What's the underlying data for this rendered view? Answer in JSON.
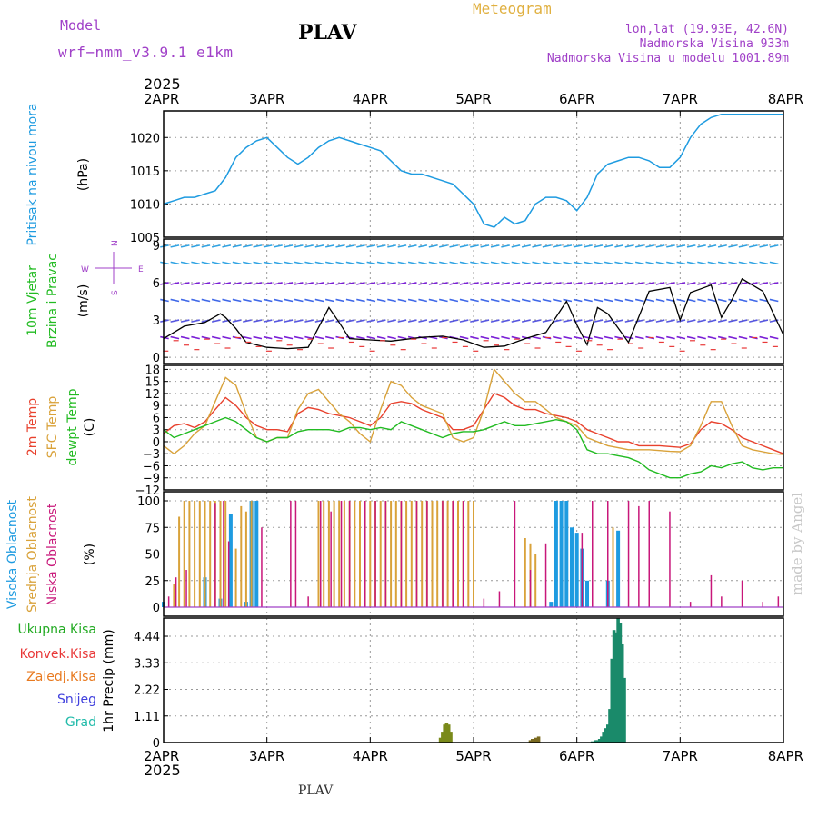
{
  "header": {
    "model_label": "Model",
    "model_name": "wrf−nmm_v3.9.1  e1km",
    "station": "PLAV",
    "product": "Meteogram",
    "coords": "lon,lat (19.93E, 42.6N)",
    "altitude": "Nadmorska Visina 933m",
    "model_altitude": "Nadmorska Visina u modelu 1001.89m",
    "year_top": "2025",
    "year_bottom": "2025",
    "footer_station": "PLAV",
    "credit": "made by Angel"
  },
  "colors": {
    "pressure": "#1e9be0",
    "temp2m": "#e8412d",
    "sfc": "#d9a23a",
    "dewpt": "#22bb22",
    "high_cloud": "#1e9be0",
    "mid_cloud": "#d9a23a",
    "low_cloud": "#c8177a",
    "total_precip": "#1a8a3a",
    "frame": "#000000",
    "grid": "#888888",
    "header_purple": "#a040c8",
    "header_gold": "#e0b040"
  },
  "chart_data": [
    {
      "type": "line",
      "panel": "pressure",
      "ylabel_left": "Pritisak na nivou mora",
      "ylabel_unit": "(hPa)",
      "x_ticks": [
        "2APR",
        "3APR",
        "4APR",
        "5APR",
        "6APR",
        "7APR",
        "8APR"
      ],
      "y_ticks": [
        1005,
        1010,
        1015,
        1020
      ],
      "ylim": [
        1005,
        1024
      ],
      "series": [
        {
          "name": "Pritisak na nivou mora",
          "x": [
            0,
            0.1,
            0.2,
            0.3,
            0.4,
            0.5,
            0.6,
            0.7,
            0.8,
            0.9,
            1.0,
            1.1,
            1.2,
            1.3,
            1.4,
            1.5,
            1.6,
            1.7,
            1.8,
            1.9,
            2.0,
            2.1,
            2.2,
            2.3,
            2.4,
            2.5,
            2.6,
            2.7,
            2.8,
            2.9,
            3.0,
            3.1,
            3.2,
            3.3,
            3.4,
            3.5,
            3.6,
            3.7,
            3.8,
            3.9,
            4.0,
            4.1,
            4.2,
            4.3,
            4.4,
            4.5,
            4.6,
            4.7,
            4.8,
            4.9,
            5.0,
            5.1,
            5.2,
            5.3,
            5.4,
            5.5,
            5.6,
            5.7,
            5.8,
            5.9,
            6.0
          ],
          "y": [
            1010,
            1010.5,
            1011,
            1011,
            1011.5,
            1012,
            1014,
            1017,
            1018.5,
            1019.5,
            1020,
            1018.5,
            1017,
            1016,
            1017,
            1018.5,
            1019.5,
            1020,
            1019.5,
            1019,
            1018.5,
            1018,
            1016.5,
            1015,
            1014.5,
            1014.5,
            1014,
            1013.5,
            1013,
            1011.5,
            1010,
            1007,
            1006.5,
            1008,
            1007,
            1007.5,
            1010,
            1011,
            1011,
            1010.5,
            1009,
            1011,
            1014.5,
            1016,
            1016.5,
            1017,
            1017,
            1016.5,
            1015.5,
            1015.5,
            1017,
            1020,
            1022,
            1023,
            1023.5,
            1023.5,
            1023.5,
            1023.5,
            1023.5,
            1023.5,
            1023.5
          ]
        }
      ]
    },
    {
      "type": "line",
      "panel": "wind",
      "ylabel_left_1": "10m Vjetar",
      "ylabel_left_2": "Brzina i Pravac",
      "ylabel_unit": "(m/s)",
      "compass": [
        "W",
        "E",
        "N",
        "S"
      ],
      "y_ticks": [
        0,
        3,
        6,
        9
      ],
      "ylim": [
        -0.5,
        9.5
      ],
      "series": [
        {
          "name": "Brzina",
          "x": [
            0,
            0.2,
            0.4,
            0.55,
            0.6,
            0.7,
            0.8,
            1.0,
            1.2,
            1.4,
            1.6,
            1.7,
            1.8,
            2.0,
            2.2,
            2.5,
            2.7,
            2.9,
            3.1,
            3.3,
            3.5,
            3.7,
            3.9,
            4.0,
            4.1,
            4.2,
            4.3,
            4.5,
            4.7,
            4.9,
            5.0,
            5.1,
            5.2,
            5.3,
            5.4,
            5.5,
            5.6,
            5.8,
            6.0
          ],
          "y": [
            1.5,
            2.5,
            2.8,
            3.5,
            3.2,
            2.3,
            1.2,
            0.8,
            0.7,
            0.8,
            4,
            2.8,
            1.5,
            1.4,
            1.3,
            1.6,
            1.7,
            1.4,
            0.8,
            0.9,
            1.5,
            2,
            4.5,
            2.6,
            1,
            4,
            3.5,
            1.2,
            5.3,
            5.6,
            3,
            5.2,
            5.5,
            5.8,
            3.2,
            4.6,
            6.3,
            5.3,
            1.8
          ]
        }
      ],
      "arrow_rows": [
        {
          "speed": 1.5,
          "color": "#7a1fd6"
        },
        {
          "speed": 3,
          "color": "#5656e0"
        },
        {
          "speed": 4.5,
          "color": "#3f68e8"
        },
        {
          "speed": 6,
          "color": "#7a1fd6"
        },
        {
          "speed": 7.5,
          "color": "#2fa3e3"
        },
        {
          "speed": 9,
          "color": "#2fa3e3"
        }
      ]
    },
    {
      "type": "line",
      "panel": "temperature",
      "ylabel_left_1": "2m Temp",
      "ylabel_left_2": "SFC Temp",
      "ylabel_left_3": "dewpt Temp",
      "ylabel_unit": "(C)",
      "y_ticks": [
        -12,
        -9,
        -6,
        -3,
        0,
        3,
        6,
        9,
        12,
        15,
        18
      ],
      "ylim": [
        -12,
        19
      ],
      "series": [
        {
          "name": "2m Temp",
          "x": [
            0,
            0.1,
            0.2,
            0.3,
            0.4,
            0.5,
            0.6,
            0.7,
            0.8,
            0.9,
            1.0,
            1.1,
            1.2,
            1.3,
            1.4,
            1.5,
            1.6,
            1.7,
            1.8,
            1.9,
            2.0,
            2.1,
            2.2,
            2.3,
            2.4,
            2.5,
            2.6,
            2.7,
            2.8,
            2.9,
            3.0,
            3.1,
            3.2,
            3.3,
            3.4,
            3.5,
            3.6,
            3.7,
            3.8,
            3.9,
            4.0,
            4.1,
            4.2,
            4.3,
            4.4,
            4.5,
            4.6,
            4.7,
            4.8,
            4.9,
            5.0,
            5.1,
            5.2,
            5.3,
            5.4,
            5.5,
            5.6,
            5.7,
            5.8,
            5.9,
            6.0
          ],
          "y": [
            2,
            4,
            4.5,
            3.5,
            5,
            8,
            11,
            9,
            6,
            4,
            3,
            3,
            2.5,
            7,
            8.5,
            8,
            7,
            6.5,
            6,
            5,
            4,
            6,
            9.5,
            10,
            9.5,
            8,
            7,
            6,
            3,
            3,
            4,
            8,
            12,
            11,
            9,
            8,
            8,
            7,
            6.5,
            6,
            5,
            3,
            2,
            1,
            0,
            0,
            -1,
            -1,
            -1,
            -1.2,
            -1.4,
            -0.5,
            3,
            5,
            4.5,
            3,
            1,
            0,
            -1,
            -2,
            -3
          ]
        },
        {
          "name": "SFC Temp",
          "x": [
            0,
            0.1,
            0.2,
            0.3,
            0.4,
            0.5,
            0.6,
            0.7,
            0.8,
            0.9,
            1.0,
            1.1,
            1.2,
            1.3,
            1.4,
            1.5,
            1.6,
            1.7,
            1.8,
            1.9,
            2.0,
            2.1,
            2.2,
            2.3,
            2.4,
            2.5,
            2.6,
            2.7,
            2.8,
            2.9,
            3.0,
            3.1,
            3.2,
            3.3,
            3.4,
            3.5,
            3.6,
            3.7,
            3.8,
            3.9,
            4.0,
            4.1,
            4.2,
            4.3,
            4.4,
            4.5,
            4.6,
            4.7,
            4.8,
            4.9,
            5.0,
            5.1,
            5.2,
            5.3,
            5.4,
            5.5,
            5.6,
            5.7,
            5.8,
            5.9,
            6.0
          ],
          "y": [
            -1,
            -3,
            -1,
            2,
            4,
            10,
            16,
            14,
            7,
            1,
            0,
            1,
            1,
            8,
            12,
            13,
            10,
            7,
            5,
            2,
            0,
            8,
            15,
            14,
            11,
            9,
            8,
            7,
            1,
            0,
            1,
            8,
            18,
            15,
            12,
            10,
            10,
            8,
            6,
            5,
            4,
            1,
            0,
            -1,
            -1.5,
            -2,
            -2,
            -2,
            -2.2,
            -2.4,
            -2.5,
            -1,
            4,
            10,
            10,
            4,
            -1,
            -2,
            -2.5,
            -3,
            -3.2
          ]
        },
        {
          "name": "dewpt Temp",
          "x": [
            0,
            0.1,
            0.2,
            0.3,
            0.4,
            0.5,
            0.6,
            0.7,
            0.8,
            0.9,
            1.0,
            1.1,
            1.2,
            1.3,
            1.4,
            1.5,
            1.6,
            1.7,
            1.8,
            1.9,
            2.0,
            2.1,
            2.2,
            2.3,
            2.4,
            2.5,
            2.6,
            2.7,
            2.8,
            2.9,
            3.0,
            3.1,
            3.2,
            3.3,
            3.4,
            3.5,
            3.6,
            3.7,
            3.8,
            3.9,
            4.0,
            4.1,
            4.2,
            4.3,
            4.4,
            4.5,
            4.6,
            4.7,
            4.8,
            4.9,
            5.0,
            5.1,
            5.2,
            5.3,
            5.4,
            5.5,
            5.6,
            5.7,
            5.8,
            5.9,
            6.0
          ],
          "y": [
            3,
            1,
            2,
            3,
            4,
            5,
            6,
            5,
            3,
            1,
            0,
            1,
            1,
            2.5,
            3,
            3,
            3,
            2.5,
            3.5,
            3.5,
            3,
            3.5,
            3,
            5,
            4,
            3,
            2,
            1,
            2,
            2.5,
            2.5,
            3,
            4,
            5,
            4,
            4,
            4.5,
            5,
            5.5,
            5,
            3,
            -2,
            -3,
            -3,
            -3.5,
            -4,
            -5,
            -7,
            -8,
            -9,
            -9,
            -8,
            -7.5,
            -6,
            -6.5,
            -5.5,
            -5,
            -6.5,
            -7,
            -6.5,
            -6.5
          ]
        }
      ]
    },
    {
      "type": "bar",
      "panel": "clouds",
      "ylabel_left_1": "Visoka Oblacnost",
      "ylabel_left_2": "Srednja Oblacnost",
      "ylabel_left_3": "Niska Oblacnost",
      "ylabel_unit": "(%)",
      "y_ticks": [
        0,
        25,
        50,
        75,
        100
      ],
      "ylim": [
        0,
        100
      ],
      "series": [
        {
          "name": "Visoka Oblacnost",
          "x": [
            0.0,
            0.4,
            0.55,
            0.65,
            0.8,
            0.85,
            0.9,
            3.75,
            3.8,
            3.85,
            3.9,
            3.95,
            4.0,
            4.05,
            4.1,
            4.3,
            4.4
          ],
          "y": [
            5,
            28,
            8,
            88,
            5,
            100,
            100,
            5,
            100,
            100,
            100,
            75,
            70,
            55,
            25,
            25,
            72
          ]
        },
        {
          "name": "Srednja Oblacnost",
          "x": [
            0.1,
            0.15,
            0.2,
            0.25,
            0.3,
            0.35,
            0.4,
            0.45,
            0.5,
            0.55,
            0.6,
            0.7,
            0.75,
            0.8,
            0.85,
            1.5,
            1.55,
            1.6,
            1.65,
            1.7,
            1.75,
            1.8,
            1.85,
            1.9,
            1.95,
            2.0,
            2.05,
            2.1,
            2.15,
            2.2,
            2.25,
            2.3,
            2.35,
            2.4,
            2.45,
            2.5,
            2.55,
            2.6,
            2.65,
            2.7,
            2.75,
            2.8,
            2.85,
            2.9,
            2.95,
            3.0,
            3.5,
            3.55,
            3.6,
            4.35
          ],
          "y": [
            22,
            85,
            100,
            100,
            100,
            100,
            100,
            100,
            100,
            100,
            100,
            55,
            95,
            90,
            100,
            100,
            100,
            100,
            100,
            100,
            100,
            100,
            100,
            100,
            100,
            100,
            100,
            100,
            100,
            100,
            100,
            100,
            100,
            100,
            100,
            100,
            100,
            100,
            100,
            100,
            100,
            100,
            100,
            100,
            100,
            100,
            65,
            60,
            50,
            75
          ]
        },
        {
          "name": "Niska Oblacnost",
          "x": [
            0.05,
            0.12,
            0.22,
            0.5,
            0.58,
            0.63,
            0.95,
            1.23,
            1.28,
            1.4,
            1.52,
            1.62,
            1.72,
            1.8,
            1.95,
            2.05,
            2.15,
            2.3,
            2.45,
            2.55,
            2.7,
            2.8,
            2.9,
            3.1,
            3.25,
            3.4,
            3.55,
            3.7,
            4.05,
            4.15,
            4.3,
            4.5,
            4.6,
            4.7,
            4.9,
            5.1,
            5.3,
            5.4,
            5.6,
            5.8,
            5.95
          ],
          "y": [
            10,
            28,
            35,
            98,
            100,
            62,
            75,
            100,
            100,
            10,
            100,
            90,
            100,
            100,
            100,
            100,
            100,
            100,
            100,
            100,
            100,
            100,
            100,
            8,
            15,
            100,
            35,
            60,
            70,
            100,
            100,
            100,
            95,
            100,
            90,
            5,
            30,
            10,
            25,
            5,
            10
          ]
        }
      ]
    },
    {
      "type": "bar",
      "panel": "precipitation",
      "legend": [
        "Ukupna Kisa",
        "Konvek.Kisa",
        "Zaledj.Kisa",
        "Snijeg",
        "Grad"
      ],
      "ylabel_unit": "1hr Precip (mm)",
      "y_ticks": [
        0,
        1.11,
        2.22,
        3.33,
        4.44
      ],
      "ylim": [
        0,
        5.2
      ],
      "series": [
        {
          "name": "Ukupna Kisa",
          "x": [
            2.68,
            2.7,
            2.72,
            2.74,
            2.76,
            2.78,
            3.55,
            3.57,
            3.6,
            3.63,
            4.15,
            4.18,
            4.2,
            4.22,
            4.24,
            4.26,
            4.28,
            4.3,
            4.32,
            4.34,
            4.36,
            4.38,
            4.4,
            4.42,
            4.44,
            4.46
          ],
          "y": [
            0.2,
            0.45,
            0.75,
            0.8,
            0.75,
            0.45,
            0.1,
            0.15,
            0.2,
            0.25,
            0.05,
            0.1,
            0.1,
            0.15,
            0.25,
            0.45,
            0.6,
            0.75,
            1.4,
            3.5,
            4.7,
            4.6,
            5.2,
            5.0,
            4.1,
            2.7
          ]
        }
      ]
    }
  ],
  "legend_colors": {
    "Ukupna Kisa": "#22aa22",
    "Konvek.Kisa": "#e83838",
    "Zaledj.Kisa": "#e87a20",
    "Snijeg": "#4040dd",
    "Grad": "#22bbaa"
  }
}
